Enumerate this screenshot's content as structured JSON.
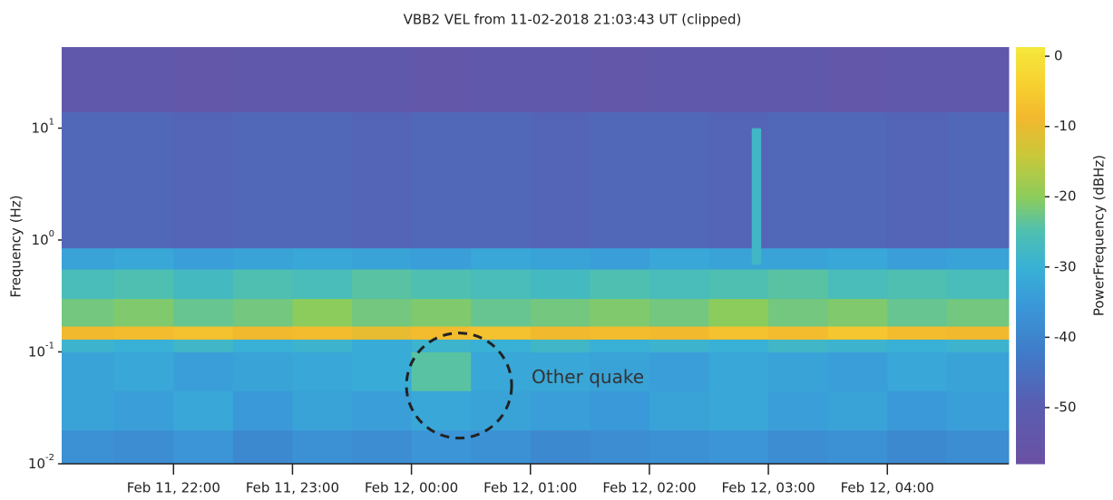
{
  "chart_data": {
    "type": "heatmap",
    "title": "VBB2 VEL  from 11-02-2018 21:03:43 UT (clipped)",
    "y_label": "Frequency (Hz)",
    "colorbar_label": "PowerFrequency (dBHz)",
    "colormap": "parula",
    "y_log": true,
    "xlim": [
      21.06,
      29.02
    ],
    "xticks": [
      {
        "value": 22,
        "label": "Feb 11, 22:00"
      },
      {
        "value": 23,
        "label": "Feb 11, 23:00"
      },
      {
        "value": 24,
        "label": "Feb 12, 00:00"
      },
      {
        "value": 25,
        "label": "Feb 12, 01:00"
      },
      {
        "value": 26,
        "label": "Feb 12, 02:00"
      },
      {
        "value": 27,
        "label": "Feb 12, 03:00"
      },
      {
        "value": 28,
        "label": "Feb 12, 04:00"
      }
    ],
    "ylim": [
      0.01,
      53
    ],
    "yticks": [
      {
        "value": 0.01,
        "label": "10^-2"
      },
      {
        "value": 0.1,
        "label": "10^-1"
      },
      {
        "value": 1,
        "label": "10^0"
      },
      {
        "value": 10,
        "label": "10^1"
      }
    ],
    "clim": [
      -58,
      1.3
    ],
    "cticks": [
      0,
      -10,
      -20,
      -30,
      -40,
      -50
    ],
    "x_edges": [
      21.06,
      21.5,
      22,
      22.5,
      23,
      23.5,
      24,
      24.5,
      25,
      25.5,
      26,
      26.5,
      27,
      27.5,
      28,
      28.5,
      29.02
    ],
    "y_edges": [
      0.01,
      0.02,
      0.045,
      0.1,
      0.13,
      0.17,
      0.3,
      0.55,
      0.85,
      14,
      53
    ],
    "z": [
      [
        -37,
        -38,
        -36,
        -39,
        -37,
        -38,
        -36,
        -37,
        -39,
        -38,
        -37,
        -36,
        -38,
        -37,
        -39,
        -38
      ],
      [
        -33,
        -34,
        -32,
        -35,
        -33,
        -34,
        -32,
        -33,
        -34,
        -35,
        -33,
        -32,
        -34,
        -33,
        -35,
        -34
      ],
      [
        -33,
        -32,
        -34,
        -33,
        -32,
        -31,
        -24,
        -32,
        -32,
        -33,
        -34,
        -32,
        -33,
        -34,
        -32,
        -33
      ],
      [
        -29,
        -30,
        -28,
        -30,
        -29,
        -31,
        -29,
        -30,
        -28,
        -30,
        -29,
        -30,
        -28,
        -29,
        -30,
        -29
      ],
      [
        -9,
        -8,
        -7,
        -9,
        -8,
        -10,
        -8,
        -7,
        -9,
        -8,
        -9,
        -7,
        -8,
        -6,
        -8,
        -9
      ],
      [
        -22,
        -21,
        -23,
        -22,
        -20,
        -22,
        -21,
        -23,
        -22,
        -21,
        -22,
        -20,
        -22,
        -21,
        -23,
        -22
      ],
      [
        -26,
        -25,
        -27,
        -25,
        -26,
        -24,
        -25,
        -26,
        -27,
        -25,
        -26,
        -25,
        -24,
        -26,
        -25,
        -26
      ],
      [
        -33,
        -32,
        -34,
        -33,
        -32,
        -33,
        -34,
        -32,
        -33,
        -34,
        -32,
        -33,
        -33,
        -32,
        -34,
        -33
      ],
      [
        -47,
        -47,
        -48,
        -47,
        -47,
        -48,
        -47,
        -47,
        -48,
        -47,
        -47,
        -48,
        -47,
        -47,
        -48,
        -47
      ],
      [
        -53,
        -53,
        -54,
        -53,
        -53,
        -53,
        -54,
        -53,
        -53,
        -54,
        -53,
        -53,
        -53,
        -54,
        -53,
        -53
      ]
    ],
    "events": [
      {
        "x": [
          26.86,
          26.94
        ],
        "y": [
          0.6,
          10
        ],
        "value": -28
      }
    ],
    "annotation": "Other quake"
  }
}
